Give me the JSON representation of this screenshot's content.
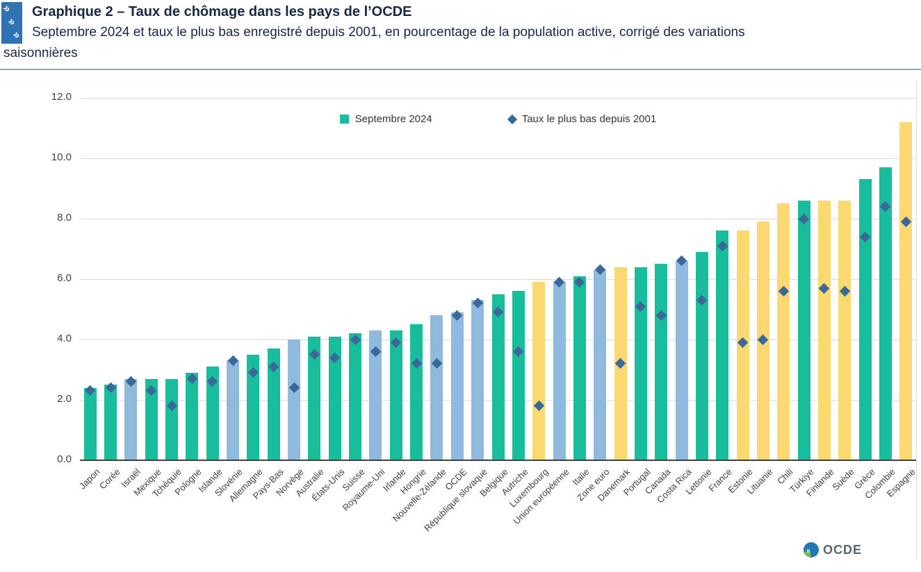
{
  "header": {
    "title": "Graphique 2 – Taux de chômage dans les pays de l’OCDE",
    "subtitle_line1": "Septembre 2024 et taux le plus bas enregistré depuis 2001, en pourcentage de la population active, corrigé des variations",
    "subtitle_line2": "saisonnières",
    "logo_glyph": "»"
  },
  "legend": {
    "series1": "Septembre 2024",
    "series2": "Taux le plus bas depuis 2001"
  },
  "footer": {
    "logo_text": "OCDE"
  },
  "colors": {
    "teal": "#18bd9b",
    "lightblue": "#8fb9dd",
    "yellow": "#fbd870",
    "diamond": "#3a689a",
    "grid": "#d9d9d9",
    "axis": "#404040"
  },
  "chart_data": {
    "type": "bar",
    "title": "Taux de chômage dans les pays de l’OCDE, septembre 2024 et taux le plus bas depuis 2001",
    "xlabel": "",
    "ylabel": "",
    "ylim": [
      0,
      12
    ],
    "yticks": [
      0,
      2,
      4,
      6,
      8,
      10,
      12
    ],
    "ytick_labels": [
      "0.0",
      "2.0",
      "4.0",
      "6.0",
      "8.0",
      "10.0",
      "12.0"
    ],
    "grid": true,
    "legend_position": "top-center",
    "categories": [
      "Japon",
      "Corée",
      "Israël",
      "Mexique",
      "Tchéquie",
      "Pologne",
      "Islande",
      "Slovénie",
      "Allemagne",
      "Pays-Bas",
      "Norvège",
      "Australie",
      "États-Unis",
      "Suisse",
      "Royaume-Uni",
      "Irlande",
      "Hongrie",
      "Nouvelle-Zélande",
      "OCDE",
      "République slovaque",
      "Belgique",
      "Autriche",
      "Luxembourg",
      "Union européenne",
      "Italie",
      "Zone euro",
      "Danemark",
      "Portugal",
      "Canada",
      "Costa Rica",
      "Lettonie",
      "France",
      "Estonie",
      "Lituanie",
      "Chili",
      "Türkiye",
      "Finlande",
      "Suède",
      "Grèce",
      "Colombie",
      "Espagne"
    ],
    "series": [
      {
        "name": "Septembre 2024",
        "type": "bar",
        "values": [
          2.4,
          2.5,
          2.7,
          2.7,
          2.7,
          2.9,
          3.1,
          3.3,
          3.5,
          3.7,
          4.0,
          4.1,
          4.1,
          4.2,
          4.3,
          4.3,
          4.5,
          4.8,
          4.9,
          5.3,
          5.5,
          5.6,
          5.9,
          5.9,
          6.1,
          6.3,
          6.4,
          6.4,
          6.5,
          6.6,
          6.9,
          7.6,
          7.6,
          7.9,
          8.5,
          8.6,
          8.6,
          8.6,
          9.3,
          9.7,
          11.2
        ],
        "color_keys": [
          "teal",
          "teal",
          "lightblue",
          "teal",
          "teal",
          "teal",
          "teal",
          "lightblue",
          "teal",
          "teal",
          "lightblue",
          "teal",
          "teal",
          "teal",
          "lightblue",
          "teal",
          "teal",
          "lightblue",
          "lightblue",
          "lightblue",
          "teal",
          "teal",
          "yellow",
          "lightblue",
          "teal",
          "lightblue",
          "yellow",
          "teal",
          "teal",
          "lightblue",
          "teal",
          "teal",
          "yellow",
          "yellow",
          "yellow",
          "teal",
          "yellow",
          "yellow",
          "teal",
          "teal",
          "yellow"
        ]
      },
      {
        "name": "Taux le plus bas depuis 2001",
        "type": "scatter",
        "marker": "diamond",
        "values": [
          2.3,
          2.4,
          2.6,
          2.3,
          1.8,
          2.7,
          2.6,
          3.3,
          2.9,
          3.1,
          2.4,
          3.5,
          3.4,
          4.0,
          3.6,
          3.9,
          3.2,
          3.2,
          4.8,
          5.2,
          4.9,
          3.6,
          1.8,
          5.9,
          5.9,
          6.3,
          3.2,
          5.1,
          4.8,
          6.6,
          5.3,
          7.1,
          3.9,
          4.0,
          5.6,
          8.0,
          5.7,
          5.6,
          7.4,
          8.4,
          7.9
        ]
      }
    ]
  }
}
